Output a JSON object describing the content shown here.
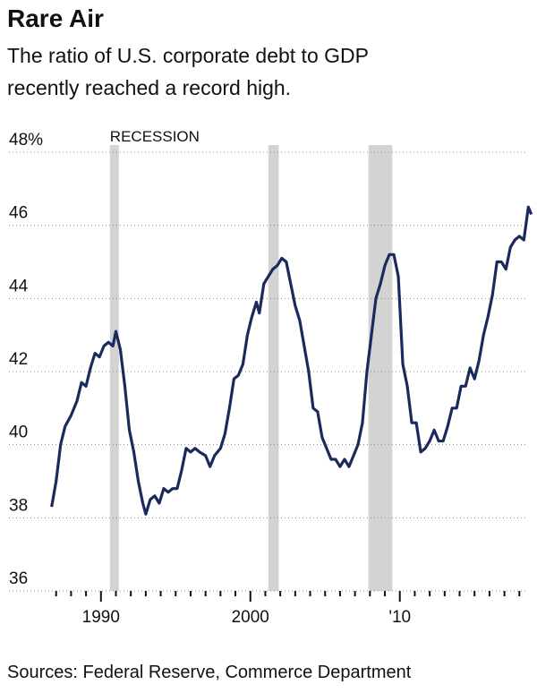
{
  "chart_data": {
    "type": "line",
    "title": "Rare Air",
    "subtitle": [
      "The ratio of U.S. corporate debt to GDP",
      "recently reached a record high."
    ],
    "source": "Sources: Federal Reserve, Commerce Department",
    "recession_label": "RECESSION",
    "recessions": [
      [
        1990.6,
        1991.2
      ],
      [
        2001.2,
        2001.9
      ],
      [
        2007.9,
        2009.5
      ]
    ],
    "recession_color": "#d3d3d3",
    "grid": true,
    "ylim": [
      36,
      48
    ],
    "yticks": [
      36,
      38,
      40,
      42,
      44,
      46,
      {
        "value": 48,
        "label": "48%"
      }
    ],
    "xlim": [
      1986,
      2019
    ],
    "xticks": [
      1990,
      2000,
      {
        "value": 2010,
        "label": "'10"
      }
    ],
    "xminorticks": [
      1987,
      1988,
      1989,
      1991,
      1992,
      1993,
      1994,
      1995,
      1996,
      1997,
      1998,
      1999,
      2001,
      2002,
      2003,
      2004,
      2005,
      2006,
      2007,
      2008,
      2009,
      2011,
      2012,
      2013,
      2014,
      2015,
      2016,
      2017,
      2018
    ],
    "x": [
      1986.7,
      1987.0,
      1987.3,
      1987.6,
      1988.0,
      1988.4,
      1988.7,
      1989.0,
      1989.3,
      1989.6,
      1989.9,
      1990.2,
      1990.5,
      1990.8,
      1991.0,
      1991.3,
      1991.6,
      1991.9,
      1992.2,
      1992.5,
      1992.8,
      1993.0,
      1993.3,
      1993.6,
      1993.9,
      1994.2,
      1994.5,
      1994.8,
      1995.1,
      1995.4,
      1995.7,
      1996.0,
      1996.3,
      1996.6,
      1997.0,
      1997.3,
      1997.6,
      1998.0,
      1998.3,
      1998.6,
      1998.9,
      1999.2,
      1999.5,
      1999.8,
      2000.1,
      2000.4,
      2000.6,
      2000.9,
      2001.2,
      2001.5,
      2001.8,
      2002.1,
      2002.4,
      2002.7,
      2003.0,
      2003.3,
      2003.6,
      2003.9,
      2004.2,
      2004.5,
      2004.8,
      2005.1,
      2005.4,
      2005.7,
      2006.0,
      2006.3,
      2006.6,
      2006.9,
      2007.2,
      2007.5,
      2007.8,
      2008.1,
      2008.4,
      2008.7,
      2009.0,
      2009.3,
      2009.6,
      2009.9,
      2010.2,
      2010.5,
      2010.8,
      2011.1,
      2011.4,
      2011.7,
      2012.0,
      2012.3,
      2012.6,
      2012.9,
      2013.2,
      2013.5,
      2013.8,
      2014.1,
      2014.4,
      2014.7,
      2015.0,
      2015.3,
      2015.6,
      2015.9,
      2016.2,
      2016.5,
      2016.8,
      2017.1,
      2017.4,
      2017.7,
      2018.0,
      2018.3,
      2018.6,
      2018.8
    ],
    "series": [
      {
        "color": "#1b2a5c",
        "values": [
          38.3,
          39.0,
          40.0,
          40.5,
          40.8,
          41.2,
          41.7,
          41.6,
          42.1,
          42.5,
          42.4,
          42.7,
          42.8,
          42.7,
          43.1,
          42.6,
          41.6,
          40.4,
          39.8,
          39.0,
          38.4,
          38.1,
          38.5,
          38.6,
          38.4,
          38.8,
          38.7,
          38.8,
          38.8,
          39.3,
          39.9,
          39.8,
          39.9,
          39.8,
          39.7,
          39.4,
          39.7,
          39.9,
          40.3,
          41.0,
          41.8,
          41.9,
          42.2,
          43.0,
          43.5,
          43.9,
          43.6,
          44.4,
          44.6,
          44.8,
          44.9,
          45.1,
          45.0,
          44.4,
          43.8,
          43.4,
          42.7,
          42.0,
          41.0,
          40.9,
          40.2,
          39.9,
          39.6,
          39.6,
          39.4,
          39.6,
          39.4,
          39.7,
          40.0,
          40.6,
          42.0,
          43.0,
          44.0,
          44.4,
          44.9,
          45.2,
          45.2,
          44.6,
          42.2,
          41.6,
          40.6,
          40.6,
          39.8,
          39.9,
          40.1,
          40.4,
          40.1,
          40.1,
          40.5,
          41.0,
          41.0,
          41.6,
          41.6,
          42.1,
          41.8,
          42.3,
          43.0,
          43.5,
          44.1,
          45.0,
          45.0,
          44.8,
          45.4,
          45.6,
          45.7,
          45.6,
          46.5,
          46.3
        ]
      }
    ]
  }
}
